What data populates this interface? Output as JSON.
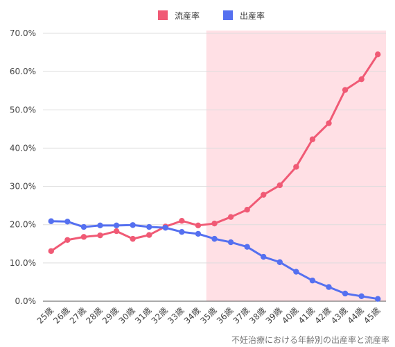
{
  "chart_data": {
    "type": "line",
    "title": "",
    "caption": "不妊治療における年齢別の出産率と流産率",
    "xlabel": "",
    "ylabel": "",
    "categories": [
      "25歳",
      "26歳",
      "27歳",
      "28歳",
      "29歳",
      "30歳",
      "31歳",
      "32歳",
      "33歳",
      "34歳",
      "35歳",
      "36歳",
      "37歳",
      "38歳",
      "39歳",
      "40歳",
      "41歳",
      "42歳",
      "43歳",
      "44歳",
      "45歳"
    ],
    "series": [
      {
        "name": "流産率",
        "color": "#f05a75",
        "values": [
          13.1,
          16.0,
          16.8,
          17.2,
          18.3,
          16.3,
          17.3,
          19.5,
          21.0,
          19.8,
          20.3,
          22.0,
          23.9,
          27.8,
          30.3,
          35.1,
          42.3,
          46.5,
          55.2,
          58.0,
          64.5
        ]
      },
      {
        "name": "出産率",
        "color": "#5570f0",
        "values": [
          20.9,
          20.8,
          19.4,
          19.8,
          19.8,
          19.9,
          19.4,
          19.2,
          18.1,
          17.6,
          16.3,
          15.4,
          14.2,
          11.6,
          10.2,
          7.7,
          5.4,
          3.7,
          2.0,
          1.3,
          0.6
        ]
      }
    ],
    "ylim": [
      0,
      70
    ],
    "yticks": [
      0,
      10,
      20,
      30,
      40,
      50,
      60,
      70
    ],
    "ytick_labels": [
      "0.0%",
      "10.0%",
      "20.0%",
      "30.0%",
      "40.0%",
      "50.0%",
      "60.0%",
      "70.0%"
    ],
    "highlight_band": {
      "from": "35歳",
      "to": "45歳",
      "color": "#ffe0e5"
    },
    "grid": true,
    "legend_position": "top-center"
  }
}
